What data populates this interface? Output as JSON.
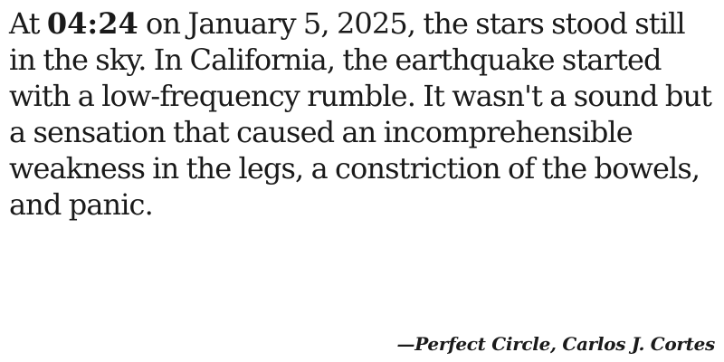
{
  "quote": {
    "prefix": "At ",
    "time": "04:24",
    "body": " on January 5, 2025, the stars stood still in the sky. In California, the earthquake started with a low-frequency rumble. It wasn't a sound but a sensation that caused an incomprehensible weakness in the legs, a constriction of the bowels, and panic."
  },
  "attribution": {
    "dash": "—",
    "title": "Perfect Circle",
    "separator": ", ",
    "author": "Carlos J. Cortes"
  }
}
